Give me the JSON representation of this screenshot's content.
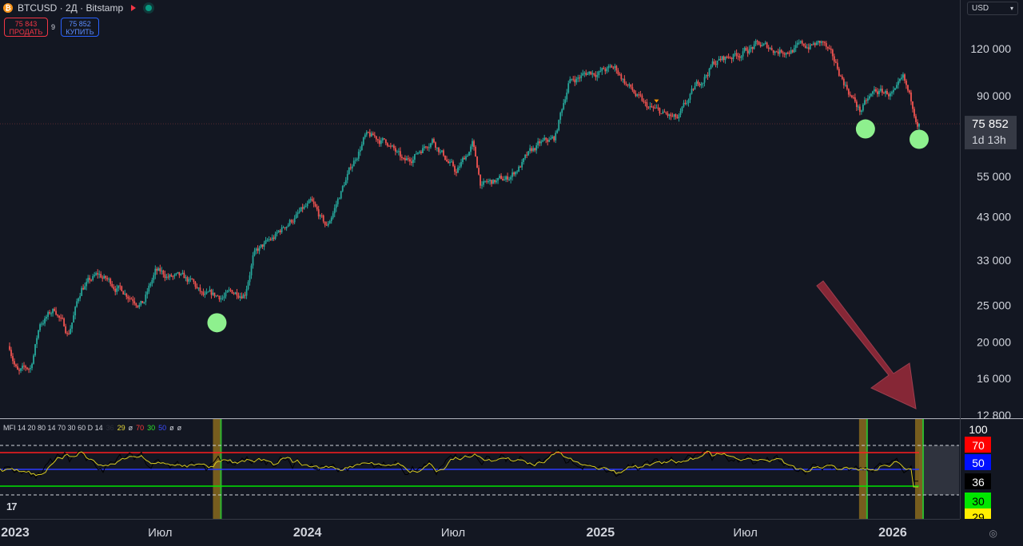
{
  "header": {
    "symbol": "BTCUSD · 2Д · Bitstamp",
    "sell_price": "75 843",
    "sell_label": "ПРОДАТЬ",
    "spread": "9",
    "buy_price": "75 852",
    "buy_label": "КУПИТЬ",
    "currency": "USD"
  },
  "price_axis": {
    "ticks": [
      120000,
      90000,
      75852,
      55000,
      43000,
      33000,
      25000,
      20000,
      16000,
      12800
    ],
    "tick_labels": [
      "120 000",
      "90 000",
      "55 000",
      "43 000",
      "33 000",
      "25 000",
      "20 000",
      "16 000",
      "12 800"
    ],
    "last_price_label": "75 852",
    "countdown": "1d 13h",
    "scale": "log"
  },
  "time_axis": {
    "labels": [
      "2023",
      "Июл",
      "2024",
      "Июл",
      "2025",
      "Июл",
      "2026"
    ]
  },
  "mfi_panel": {
    "legend": {
      "title": "MFI 14 20 80 14 70 30 60 D 14",
      "v1": "36",
      "v2": "29",
      "v3": "ø",
      "v4": "70",
      "v5": "30",
      "v6": "50",
      "v7": "ø",
      "v8": "ø"
    },
    "axis_labels": [
      "100",
      "70",
      "50",
      "36",
      "30",
      "29"
    ],
    "levels": {
      "upper": 70,
      "mid": 50,
      "lower": 30
    },
    "ylim": [
      0,
      100
    ]
  },
  "colors": {
    "up": "#26a69a",
    "down": "#ef5350",
    "mfi_line": "#000000",
    "signal_line": "#d4c81f",
    "level70": "#ff1f1f",
    "level50": "#2d3cff",
    "level30": "#00e500",
    "marker": "#8ef08e",
    "arrow": "#a32c3c"
  },
  "chart_data": {
    "type": "candlestick",
    "scale": "log",
    "ylim": [
      12800,
      140000
    ],
    "price_path": [
      [
        "2022-12-25",
        19500
      ],
      [
        "2023-01-05",
        16500
      ],
      [
        "2023-01-20",
        17000
      ],
      [
        "2023-02-01",
        22500
      ],
      [
        "2023-02-20",
        24500
      ],
      [
        "2023-03-08",
        21000
      ],
      [
        "2023-03-25",
        28000
      ],
      [
        "2023-04-15",
        30000
      ],
      [
        "2023-05-15",
        27500
      ],
      [
        "2023-06-10",
        25500
      ],
      [
        "2023-06-25",
        30500
      ],
      [
        "2023-07-20",
        29500
      ],
      [
        "2023-08-10",
        28500
      ],
      [
        "2023-08-25",
        26000
      ],
      [
        "2023-09-20",
        26500
      ],
      [
        "2023-10-15",
        27500
      ],
      [
        "2023-10-25",
        34000
      ],
      [
        "2023-11-20",
        37500
      ],
      [
        "2023-12-10",
        42000
      ],
      [
        "2024-01-05",
        46000
      ],
      [
        "2024-01-25",
        40000
      ],
      [
        "2024-02-15",
        52000
      ],
      [
        "2024-03-12",
        70000
      ],
      [
        "2024-04-10",
        68000
      ],
      [
        "2024-05-01",
        59000
      ],
      [
        "2024-06-05",
        70000
      ],
      [
        "2024-07-05",
        56000
      ],
      [
        "2024-07-25",
        67000
      ],
      [
        "2024-08-05",
        52000
      ],
      [
        "2024-09-06",
        54000
      ],
      [
        "2024-10-15",
        66000
      ],
      [
        "2024-11-05",
        69000
      ],
      [
        "2024-11-22",
        98000
      ],
      [
        "2024-12-18",
        104000
      ],
      [
        "2025-01-20",
        106000
      ],
      [
        "2025-02-25",
        84000
      ],
      [
        "2025-04-08",
        77000
      ],
      [
        "2025-05-01",
        95000
      ],
      [
        "2025-05-22",
        110000
      ],
      [
        "2025-07-14",
        122000
      ],
      [
        "2025-08-14",
        119000
      ],
      [
        "2025-10-06",
        124000
      ],
      [
        "2025-11-21",
        82000
      ],
      [
        "2025-12-10",
        92000
      ],
      [
        "2026-01-05",
        91000
      ],
      [
        "2026-01-14",
        97000
      ],
      [
        "2026-02-03",
        75852
      ]
    ],
    "markers": [
      {
        "date": "2023-09-10",
        "price": 22500
      },
      {
        "date": "2025-11-28",
        "price": 73500
      },
      {
        "date": "2026-02-03",
        "price": 69000
      }
    ],
    "mfi": {
      "current": 36,
      "signal_current": 29,
      "highlight_dates": [
        "2023-09-10",
        "2025-11-25",
        "2026-02-03"
      ]
    }
  }
}
